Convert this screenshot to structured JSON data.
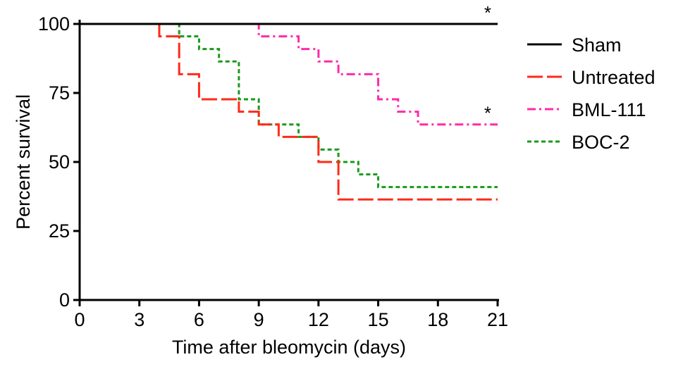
{
  "chart_data": {
    "type": "line",
    "subtype": "kaplan-meier-step",
    "xlabel": "Time after bleomycin (days)",
    "ylabel": "Percent survival",
    "xlim": [
      0,
      21
    ],
    "ylim": [
      0,
      100
    ],
    "xticks": [
      0,
      3,
      6,
      9,
      12,
      15,
      18,
      21
    ],
    "yticks": [
      0,
      25,
      50,
      75,
      100
    ],
    "grid": false,
    "legend_position": "right",
    "series": [
      {
        "name": "Sham",
        "color": "#000000",
        "dash": "solid",
        "x": [
          0,
          21
        ],
        "y": [
          100,
          100
        ],
        "annotation": "*"
      },
      {
        "name": "Untreated",
        "color": "#ff2a1a",
        "dash": "long-dash",
        "x": [
          0,
          4,
          5,
          6,
          8,
          9,
          10,
          12,
          13,
          21
        ],
        "y": [
          100,
          95.5,
          81.8,
          72.7,
          68.2,
          63.6,
          59.1,
          50,
          36.4,
          36.4
        ]
      },
      {
        "name": "BML-111",
        "color": "#ff2aa8",
        "dash": "dash-dot",
        "x": [
          0,
          9,
          11,
          12,
          13,
          15,
          16,
          17,
          21
        ],
        "y": [
          100,
          95.5,
          90.9,
          86.4,
          81.8,
          72.7,
          68.2,
          63.6,
          63.6
        ],
        "annotation": "*"
      },
      {
        "name": "BOC-2",
        "color": "#1a9a1a",
        "dash": "short-dash",
        "x": [
          0,
          5,
          6,
          7,
          8,
          9,
          11,
          12,
          13,
          14,
          15,
          21
        ],
        "y": [
          100,
          95.5,
          90.9,
          86.4,
          72.7,
          63.6,
          59.1,
          54.5,
          50,
          45.5,
          40.9,
          40.9
        ]
      }
    ]
  }
}
